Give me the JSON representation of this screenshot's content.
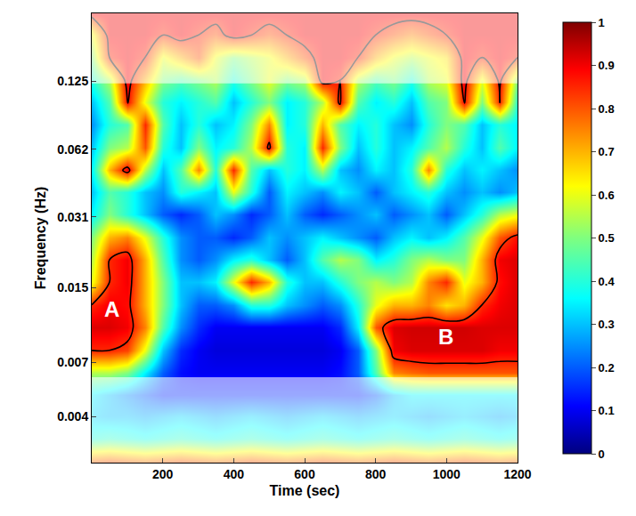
{
  "chart_data": {
    "type": "heatmap",
    "x_label": "Time (sec)",
    "y_label": "Frequency (Hz)",
    "log": "y",
    "grid": false,
    "xlim": [
      0,
      1200
    ],
    "ylim": [
      0.0025,
      0.25
    ],
    "xticks": [
      200,
      400,
      600,
      800,
      1000,
      1200
    ],
    "yticks": [
      0.004,
      0.007,
      0.015,
      0.031,
      0.062,
      0.125
    ],
    "colorbar_range": [
      0,
      1
    ],
    "colorbar_ticks": [
      0,
      0.1,
      0.2,
      0.3,
      0.4,
      0.5,
      0.6,
      0.7,
      0.8,
      0.9,
      1
    ],
    "contour_level": 0.85,
    "coi_upper": 0.122,
    "coi_lower": 0.006,
    "annotations": [
      {
        "text": "A",
        "x": 57,
        "y": 0.012
      },
      {
        "text": "B",
        "x": 997,
        "y": 0.0091
      }
    ],
    "x": [
      0,
      50,
      100,
      150,
      200,
      250,
      300,
      350,
      400,
      450,
      500,
      550,
      600,
      650,
      700,
      750,
      800,
      850,
      900,
      950,
      1000,
      1050,
      1100,
      1150,
      1200
    ],
    "y": [
      0.0025,
      0.0032,
      0.004,
      0.005,
      0.0063,
      0.0079,
      0.01,
      0.0126,
      0.0159,
      0.02,
      0.0252,
      0.0317,
      0.04,
      0.05,
      0.063,
      0.08,
      0.1,
      0.126,
      0.159,
      0.2,
      0.25
    ],
    "z": [
      [
        0.8,
        0.82,
        0.8,
        0.78,
        0.8,
        0.82,
        0.8,
        0.78,
        0.8,
        0.82,
        0.8,
        0.78,
        0.8,
        0.82,
        0.8,
        0.78,
        0.8,
        0.82,
        0.8,
        0.78,
        0.8,
        0.82,
        0.8,
        0.78,
        0.8
      ],
      [
        0.4,
        0.42,
        0.4,
        0.38,
        0.4,
        0.42,
        0.4,
        0.38,
        0.4,
        0.42,
        0.4,
        0.38,
        0.4,
        0.42,
        0.4,
        0.38,
        0.4,
        0.42,
        0.4,
        0.38,
        0.4,
        0.42,
        0.4,
        0.38,
        0.4
      ],
      [
        0.32,
        0.3,
        0.3,
        0.28,
        0.3,
        0.32,
        0.3,
        0.28,
        0.3,
        0.32,
        0.3,
        0.28,
        0.3,
        0.32,
        0.3,
        0.28,
        0.3,
        0.32,
        0.3,
        0.28,
        0.3,
        0.32,
        0.3,
        0.28,
        0.3
      ],
      [
        0.35,
        0.3,
        0.25,
        0.2,
        0.15,
        0.15,
        0.15,
        0.15,
        0.15,
        0.15,
        0.15,
        0.15,
        0.15,
        0.15,
        0.15,
        0.15,
        0.2,
        0.3,
        0.35,
        0.35,
        0.35,
        0.35,
        0.35,
        0.35,
        0.35
      ],
      [
        0.55,
        0.55,
        0.5,
        0.35,
        0.2,
        0.12,
        0.1,
        0.1,
        0.1,
        0.1,
        0.1,
        0.1,
        0.1,
        0.1,
        0.12,
        0.2,
        0.45,
        0.75,
        0.78,
        0.8,
        0.8,
        0.8,
        0.8,
        0.8,
        0.8
      ],
      [
        0.85,
        0.85,
        0.82,
        0.6,
        0.3,
        0.15,
        0.1,
        0.08,
        0.08,
        0.08,
        0.08,
        0.08,
        0.08,
        0.08,
        0.1,
        0.2,
        0.5,
        0.9,
        0.92,
        0.92,
        0.92,
        0.92,
        0.92,
        0.9,
        0.9
      ],
      [
        0.92,
        0.92,
        0.9,
        0.75,
        0.45,
        0.25,
        0.15,
        0.1,
        0.1,
        0.1,
        0.1,
        0.1,
        0.1,
        0.1,
        0.15,
        0.35,
        0.8,
        0.92,
        0.93,
        0.93,
        0.93,
        0.93,
        0.92,
        0.92,
        0.92
      ],
      [
        0.85,
        0.9,
        0.88,
        0.7,
        0.5,
        0.3,
        0.2,
        0.2,
        0.25,
        0.4,
        0.4,
        0.3,
        0.25,
        0.2,
        0.25,
        0.4,
        0.6,
        0.7,
        0.7,
        0.75,
        0.65,
        0.7,
        0.85,
        0.9,
        0.92
      ],
      [
        0.6,
        0.85,
        0.9,
        0.7,
        0.5,
        0.3,
        0.3,
        0.35,
        0.6,
        0.85,
        0.7,
        0.4,
        0.3,
        0.3,
        0.4,
        0.5,
        0.55,
        0.5,
        0.55,
        0.75,
        0.85,
        0.6,
        0.7,
        0.88,
        0.92
      ],
      [
        0.55,
        0.85,
        0.9,
        0.7,
        0.45,
        0.25,
        0.2,
        0.25,
        0.35,
        0.4,
        0.3,
        0.2,
        0.3,
        0.45,
        0.55,
        0.5,
        0.35,
        0.4,
        0.5,
        0.55,
        0.5,
        0.5,
        0.7,
        0.9,
        0.92
      ],
      [
        0.5,
        0.7,
        0.75,
        0.6,
        0.4,
        0.25,
        0.2,
        0.2,
        0.15,
        0.2,
        0.3,
        0.25,
        0.3,
        0.35,
        0.3,
        0.25,
        0.2,
        0.3,
        0.35,
        0.3,
        0.35,
        0.45,
        0.6,
        0.8,
        0.88
      ],
      [
        0.35,
        0.5,
        0.4,
        0.3,
        0.2,
        0.15,
        0.2,
        0.3,
        0.25,
        0.15,
        0.2,
        0.3,
        0.2,
        0.15,
        0.2,
        0.25,
        0.3,
        0.2,
        0.25,
        0.3,
        0.2,
        0.3,
        0.4,
        0.55,
        0.6
      ],
      [
        0.3,
        0.45,
        0.4,
        0.3,
        0.25,
        0.4,
        0.35,
        0.3,
        0.6,
        0.4,
        0.2,
        0.35,
        0.3,
        0.25,
        0.35,
        0.3,
        0.2,
        0.3,
        0.35,
        0.4,
        0.3,
        0.25,
        0.3,
        0.25,
        0.3
      ],
      [
        0.35,
        0.7,
        0.9,
        0.55,
        0.3,
        0.45,
        0.75,
        0.4,
        0.85,
        0.45,
        0.3,
        0.4,
        0.35,
        0.55,
        0.3,
        0.25,
        0.35,
        0.3,
        0.4,
        0.75,
        0.4,
        0.3,
        0.35,
        0.3,
        0.25
      ],
      [
        0.3,
        0.5,
        0.55,
        0.8,
        0.4,
        0.3,
        0.5,
        0.35,
        0.4,
        0.55,
        0.88,
        0.4,
        0.35,
        0.85,
        0.5,
        0.3,
        0.4,
        0.3,
        0.35,
        0.45,
        0.55,
        0.4,
        0.3,
        0.45,
        0.35
      ],
      [
        0.25,
        0.4,
        0.45,
        0.85,
        0.45,
        0.3,
        0.4,
        0.3,
        0.35,
        0.5,
        0.75,
        0.35,
        0.4,
        0.7,
        0.45,
        0.35,
        0.4,
        0.3,
        0.25,
        0.4,
        0.5,
        0.45,
        0.3,
        0.4,
        0.35
      ],
      [
        0.3,
        0.45,
        0.88,
        0.6,
        0.4,
        0.35,
        0.4,
        0.45,
        0.3,
        0.4,
        0.5,
        0.35,
        0.4,
        0.55,
        0.88,
        0.45,
        0.35,
        0.4,
        0.3,
        0.45,
        0.5,
        0.88,
        0.5,
        0.85,
        0.4
      ],
      [
        0.4,
        0.55,
        0.9,
        0.7,
        0.5,
        0.45,
        0.5,
        0.55,
        0.4,
        0.5,
        0.6,
        0.5,
        0.55,
        0.9,
        0.85,
        0.55,
        0.45,
        0.5,
        0.4,
        0.55,
        0.6,
        0.9,
        0.6,
        0.88,
        0.5
      ],
      [
        0.5,
        0.85,
        0.9,
        0.85,
        0.6,
        0.7,
        0.8,
        0.6,
        0.5,
        0.55,
        0.6,
        0.7,
        0.8,
        0.9,
        0.9,
        0.85,
        0.7,
        0.6,
        0.55,
        0.6,
        0.65,
        0.9,
        0.85,
        0.9,
        0.85
      ],
      [
        0.6,
        0.9,
        0.9,
        0.9,
        0.85,
        0.9,
        0.85,
        0.8,
        0.9,
        0.85,
        0.8,
        0.85,
        0.9,
        0.9,
        0.9,
        0.9,
        0.85,
        0.8,
        0.75,
        0.8,
        0.85,
        0.9,
        0.9,
        0.9,
        0.9
      ],
      [
        0.9,
        0.9,
        0.9,
        0.9,
        0.9,
        0.9,
        0.9,
        0.9,
        0.9,
        0.9,
        0.9,
        0.9,
        0.9,
        0.9,
        0.9,
        0.9,
        0.9,
        0.9,
        0.9,
        0.9,
        0.9,
        0.9,
        0.9,
        0.9,
        0.9
      ]
    ]
  }
}
